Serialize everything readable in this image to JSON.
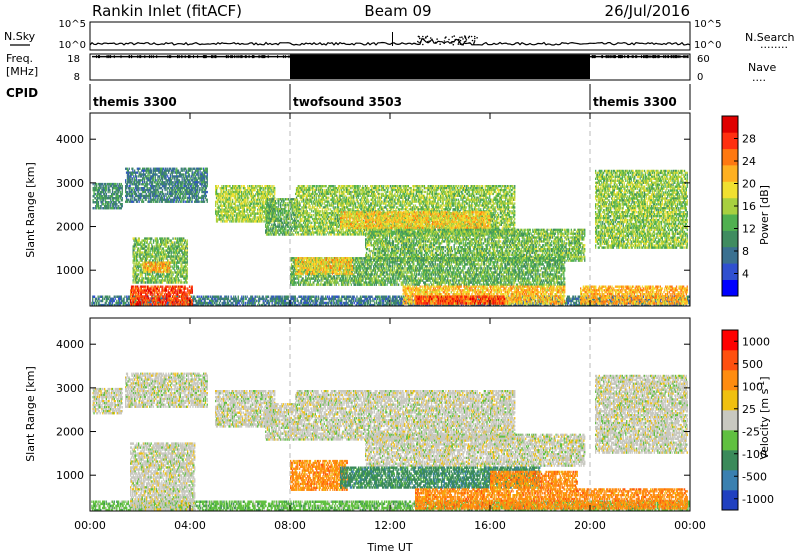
{
  "header": {
    "station": "Rankin Inlet (fitACF)",
    "beam": "Beam 09",
    "date": "26/Jul/2016"
  },
  "top_panels": {
    "nsky_label": "N.Sky",
    "nsearch_label": "N.Search",
    "nsearch_style": "........",
    "freq_label_1": "Freq.",
    "freq_label_2": "[MHz]",
    "nave_label": "Nave",
    "nave_style": "....",
    "cpid_label": "CPID",
    "noise_left_ticks": [
      "10^5",
      "10^0"
    ],
    "noise_right_ticks": [
      "10^5",
      "10^0"
    ],
    "freq_ticks": [
      "18",
      "8"
    ],
    "nave_ticks": [
      "60",
      "0"
    ],
    "freq_level": 0.1,
    "nave_level": 0.15
  },
  "cpid_segments": [
    {
      "label": "themis 3300",
      "start_h": 0,
      "end_h": 8
    },
    {
      "label": "twofsound 3503",
      "start_h": 8,
      "end_h": 20
    },
    {
      "label": "themis 3300",
      "start_h": 20,
      "end_h": 24
    }
  ],
  "chart_data": [
    {
      "type": "heatmap",
      "title": "",
      "panel": "power",
      "xlabel": "",
      "ylabel": "Slant Range [km]",
      "xlim": [
        0,
        24
      ],
      "ylim": [
        180,
        4600
      ],
      "yticks": [
        "1000",
        "2000",
        "3000",
        "4000"
      ],
      "ytick_values": [
        1000,
        2000,
        3000,
        4000
      ],
      "colorbar": {
        "label": "Power [dB]",
        "range": [
          0,
          32
        ],
        "ticks": [
          "4",
          "8",
          "12",
          "16",
          "20",
          "24",
          "28"
        ],
        "tick_values": [
          4,
          8,
          12,
          16,
          20,
          24,
          28
        ],
        "colors": [
          "#0000ff",
          "#3050d0",
          "#3a7090",
          "#408c60",
          "#50b050",
          "#a8d040",
          "#f0e030",
          "#ffb020",
          "#ff7810",
          "#ff3010",
          "#e00000"
        ]
      },
      "bands": [
        {
          "start_h": 0.05,
          "end_h": 24,
          "r_min": 180,
          "r_max": 420,
          "v": 8
        },
        {
          "start_h": 1.6,
          "end_h": 4.1,
          "r_min": 200,
          "r_max": 650,
          "v": 27
        },
        {
          "start_h": 1.7,
          "end_h": 3.9,
          "r_min": 700,
          "r_max": 1750,
          "v": 14
        },
        {
          "start_h": 2.1,
          "end_h": 3.2,
          "r_min": 950,
          "r_max": 1200,
          "v": 22
        },
        {
          "start_h": 0.1,
          "end_h": 1.3,
          "r_min": 2400,
          "r_max": 3000,
          "v": 10
        },
        {
          "start_h": 1.4,
          "end_h": 4.7,
          "r_min": 2550,
          "r_max": 3350,
          "v": 9
        },
        {
          "start_h": 5.0,
          "end_h": 7.4,
          "r_min": 2100,
          "r_max": 2950,
          "v": 16
        },
        {
          "start_h": 8.2,
          "end_h": 17.0,
          "r_min": 1800,
          "r_max": 2950,
          "v": 15
        },
        {
          "start_h": 10.0,
          "end_h": 16.0,
          "r_min": 1950,
          "r_max": 2350,
          "v": 20
        },
        {
          "start_h": 11.0,
          "end_h": 19.8,
          "r_min": 1200,
          "r_max": 1950,
          "v": 14
        },
        {
          "start_h": 8.0,
          "end_h": 19.0,
          "r_min": 650,
          "r_max": 1300,
          "v": 13
        },
        {
          "start_h": 8.2,
          "end_h": 10.5,
          "r_min": 900,
          "r_max": 1300,
          "v": 20
        },
        {
          "start_h": 12.5,
          "end_h": 19.0,
          "r_min": 220,
          "r_max": 650,
          "v": 21
        },
        {
          "start_h": 13.0,
          "end_h": 16.6,
          "r_min": 220,
          "r_max": 420,
          "v": 27
        },
        {
          "start_h": 19.6,
          "end_h": 23.9,
          "r_min": 220,
          "r_max": 650,
          "v": 22
        },
        {
          "start_h": 20.2,
          "end_h": 23.9,
          "r_min": 1500,
          "r_max": 3300,
          "v": 15
        },
        {
          "start_h": 7.0,
          "end_h": 8.2,
          "r_min": 1800,
          "r_max": 2650,
          "v": 13
        }
      ]
    },
    {
      "type": "heatmap",
      "title": "",
      "panel": "velocity",
      "xlabel": "Time UT",
      "ylabel": "Slant Range [km]",
      "xlim": [
        0,
        24
      ],
      "ylim": [
        180,
        4600
      ],
      "xticks": [
        "00:00",
        "04:00",
        "08:00",
        "12:00",
        "16:00",
        "20:00",
        "00:00"
      ],
      "xtick_values": [
        0,
        4,
        8,
        12,
        16,
        20,
        24
      ],
      "yticks": [
        "1000",
        "2000",
        "3000",
        "4000"
      ],
      "ytick_values": [
        1000,
        2000,
        3000,
        4000
      ],
      "colorbar": {
        "label": "Velocity [m s",
        "label_sup": "-1",
        "label_end": "]",
        "ticks": [
          "1000",
          "500",
          "100",
          "25",
          "-25",
          "-100",
          "-500",
          "-1000"
        ],
        "colors": [
          "#2040c0",
          "#3a80b0",
          "#3a8a5a",
          "#60c040",
          "#c8c8c0",
          "#f0c010",
          "#ff8c10",
          "#ff5010",
          "#ff0000"
        ]
      },
      "bands": [
        {
          "start_h": 0.05,
          "end_h": 24,
          "r_min": 180,
          "r_max": 420,
          "c": 3
        },
        {
          "start_h": 1.6,
          "end_h": 4.2,
          "r_min": 200,
          "r_max": 1750,
          "c": 4
        },
        {
          "start_h": 0.1,
          "end_h": 1.3,
          "r_min": 2400,
          "r_max": 3000,
          "c": 4
        },
        {
          "start_h": 1.4,
          "end_h": 4.7,
          "r_min": 2550,
          "r_max": 3350,
          "c": 4
        },
        {
          "start_h": 5.0,
          "end_h": 7.4,
          "r_min": 2100,
          "r_max": 2950,
          "c": 4
        },
        {
          "start_h": 8.2,
          "end_h": 17.0,
          "r_min": 1800,
          "r_max": 2950,
          "c": 4
        },
        {
          "start_h": 11.0,
          "end_h": 19.8,
          "r_min": 1200,
          "r_max": 1950,
          "c": 4
        },
        {
          "start_h": 8.0,
          "end_h": 10.3,
          "r_min": 650,
          "r_max": 1350,
          "c": 6
        },
        {
          "start_h": 10.0,
          "end_h": 18.0,
          "r_min": 700,
          "r_max": 1200,
          "c": 2
        },
        {
          "start_h": 13.0,
          "end_h": 23.9,
          "r_min": 220,
          "r_max": 700,
          "c": 6
        },
        {
          "start_h": 16.0,
          "end_h": 19.5,
          "r_min": 700,
          "r_max": 1100,
          "c": 6
        },
        {
          "start_h": 20.2,
          "end_h": 23.9,
          "r_min": 1500,
          "r_max": 3300,
          "c": 4
        },
        {
          "start_h": 7.0,
          "end_h": 8.2,
          "r_min": 1800,
          "r_max": 2650,
          "c": 4
        }
      ]
    }
  ]
}
